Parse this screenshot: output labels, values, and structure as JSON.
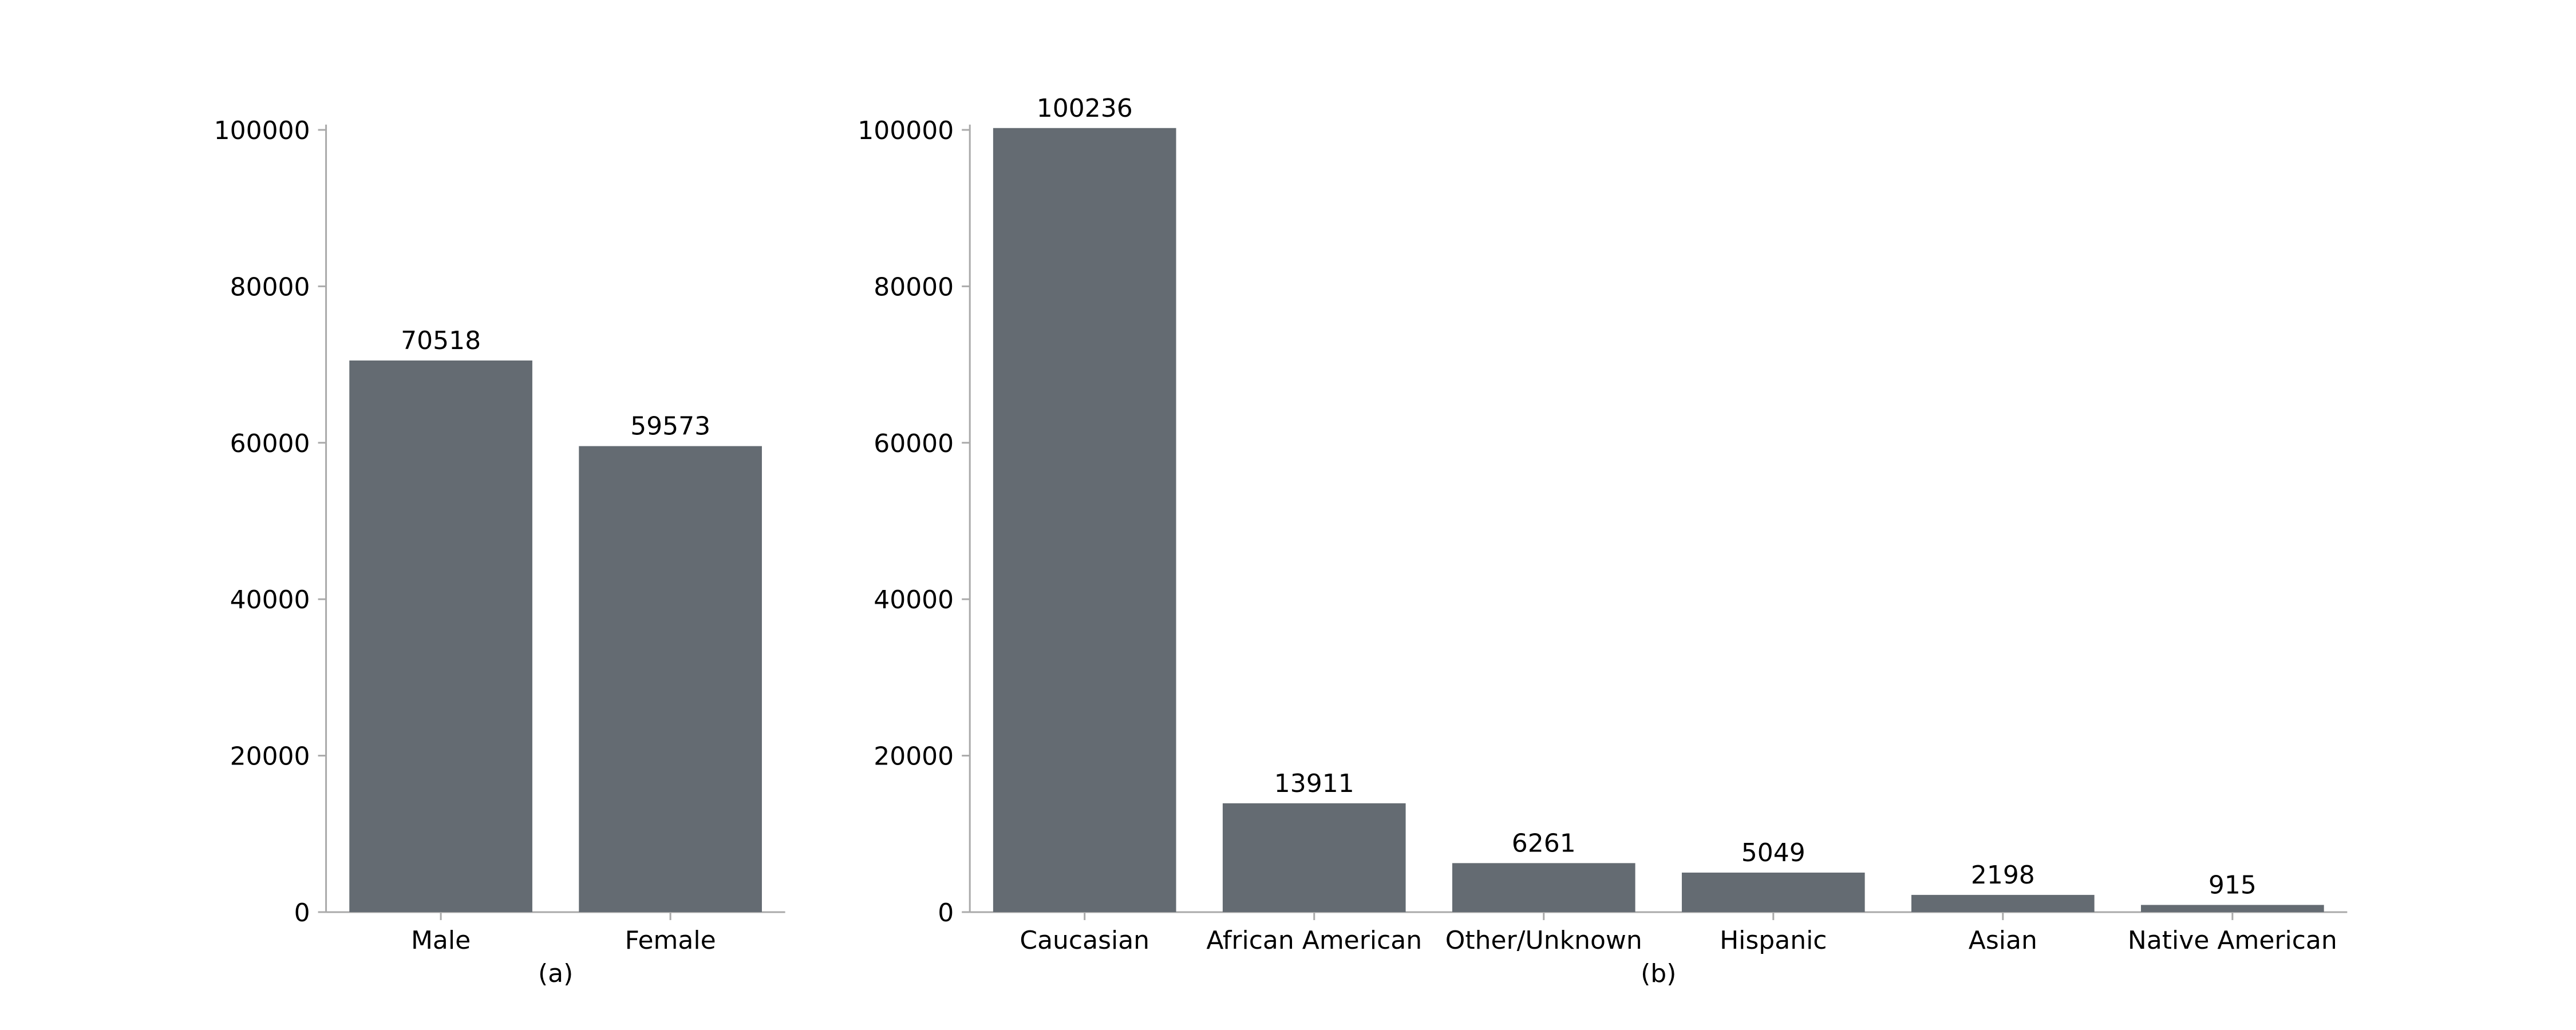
{
  "chart_data": [
    {
      "type": "bar",
      "categories": [
        "Male",
        "Female"
      ],
      "values": [
        70518,
        59573
      ],
      "xlabel": "(a)",
      "ylabel": "",
      "ylim": [
        0,
        100236
      ],
      "yticks": [
        0,
        20000,
        40000,
        60000,
        80000,
        100000
      ],
      "grid": false,
      "legend": "none"
    },
    {
      "type": "bar",
      "categories": [
        "Caucasian",
        "African American",
        "Other/Unknown",
        "Hispanic",
        "Asian",
        "Native American"
      ],
      "values": [
        100236,
        13911,
        6261,
        5049,
        2198,
        915
      ],
      "xlabel": "(b)",
      "ylabel": "",
      "ylim": [
        0,
        100236
      ],
      "yticks": [
        0,
        20000,
        40000,
        60000,
        80000,
        100000
      ],
      "grid": false,
      "legend": "none"
    }
  ],
  "colors": {
    "bar": "#646b72",
    "axis": "#aaaaaa",
    "text": "#000000"
  }
}
